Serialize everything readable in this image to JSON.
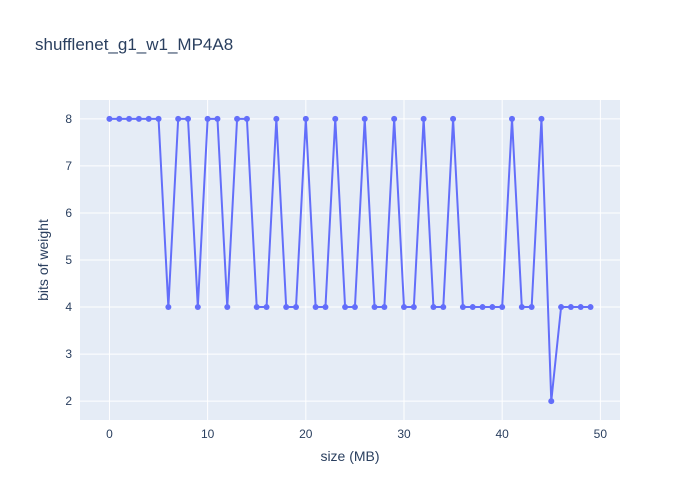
{
  "chart_data": {
    "type": "line",
    "title": "shufflenet_g1_w1_MP4A8",
    "xlabel": "size (MB)",
    "ylabel": "bits of weight",
    "xlim": [
      -3,
      52
    ],
    "ylim": [
      1.6,
      8.4
    ],
    "xticks": [
      0,
      10,
      20,
      30,
      40,
      50
    ],
    "yticks": [
      2,
      3,
      4,
      5,
      6,
      7,
      8
    ],
    "grid": true,
    "series": [
      {
        "color": "#636efa",
        "mode": "lines+markers",
        "x": [
          0,
          1,
          2,
          3,
          4,
          5,
          6,
          7,
          8,
          9,
          10,
          11,
          12,
          13,
          14,
          15,
          16,
          17,
          18,
          19,
          20,
          21,
          22,
          23,
          24,
          25,
          26,
          27,
          28,
          29,
          30,
          31,
          32,
          33,
          34,
          35,
          36,
          37,
          38,
          39,
          40,
          41,
          42,
          43,
          44,
          45,
          46,
          47,
          48,
          49
        ],
        "y": [
          8,
          8,
          8,
          8,
          8,
          8,
          4,
          8,
          8,
          4,
          8,
          8,
          4,
          8,
          8,
          4,
          4,
          8,
          4,
          4,
          8,
          4,
          4,
          8,
          4,
          4,
          8,
          4,
          4,
          8,
          4,
          4,
          8,
          4,
          4,
          8,
          4,
          4,
          4,
          4,
          4,
          8,
          4,
          4,
          8,
          2,
          4,
          4,
          4,
          4
        ]
      }
    ]
  }
}
